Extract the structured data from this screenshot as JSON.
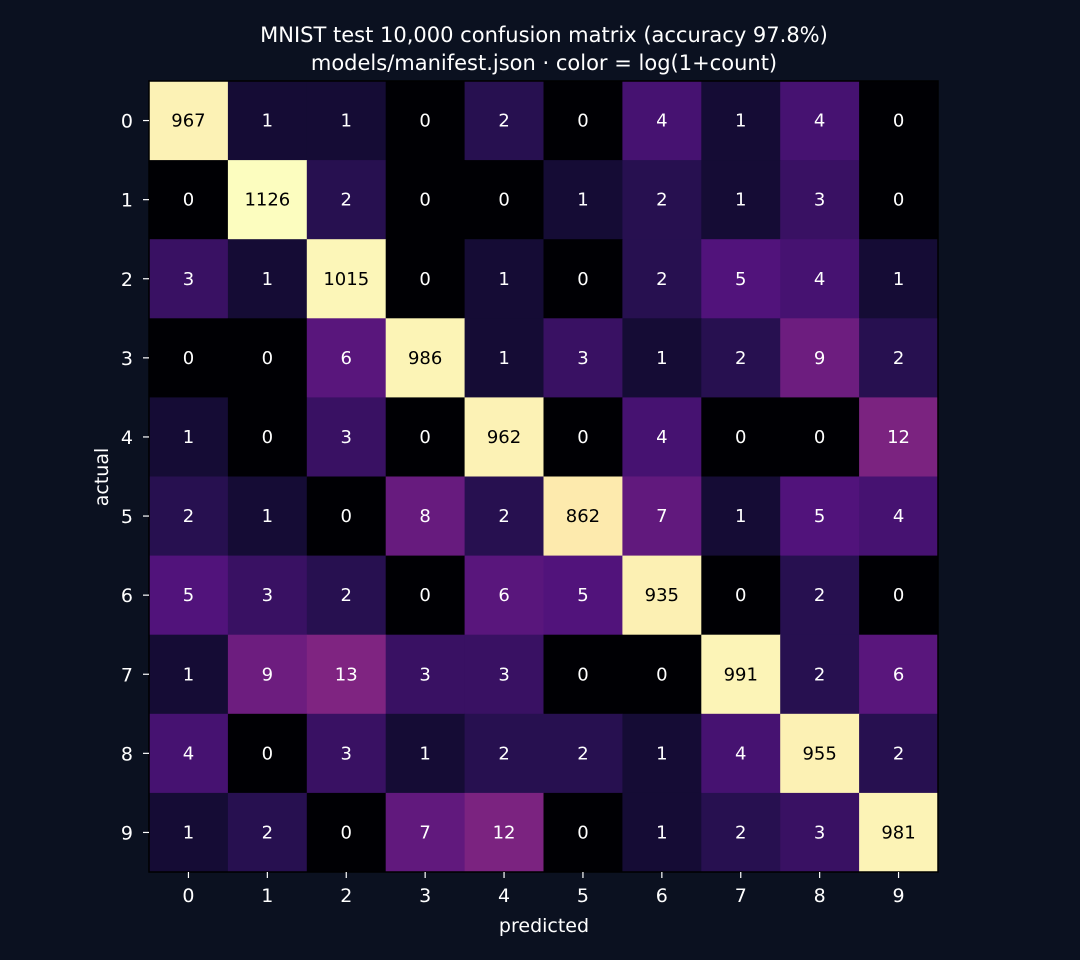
{
  "chart_data": {
    "type": "heatmap",
    "title": "MNIST test 10,000 confusion matrix (accuracy 97.8%)",
    "subtitle": "models/manifest.json · color = log(1+count)",
    "xlabel": "predicted",
    "ylabel": "actual",
    "x_categories": [
      "0",
      "1",
      "2",
      "3",
      "4",
      "5",
      "6",
      "7",
      "8",
      "9"
    ],
    "y_categories": [
      "0",
      "1",
      "2",
      "3",
      "4",
      "5",
      "6",
      "7",
      "8",
      "9"
    ],
    "values": [
      [
        967,
        1,
        1,
        0,
        2,
        0,
        4,
        1,
        4,
        0
      ],
      [
        0,
        1126,
        2,
        0,
        0,
        1,
        2,
        1,
        3,
        0
      ],
      [
        3,
        1,
        1015,
        0,
        1,
        0,
        2,
        5,
        4,
        1
      ],
      [
        0,
        0,
        6,
        986,
        1,
        3,
        1,
        2,
        9,
        2
      ],
      [
        1,
        0,
        3,
        0,
        962,
        0,
        4,
        0,
        0,
        12
      ],
      [
        2,
        1,
        0,
        8,
        2,
        862,
        7,
        1,
        5,
        4
      ],
      [
        5,
        3,
        2,
        0,
        6,
        5,
        935,
        0,
        2,
        0
      ],
      [
        1,
        9,
        13,
        3,
        3,
        0,
        0,
        991,
        2,
        6
      ],
      [
        4,
        0,
        3,
        1,
        2,
        2,
        1,
        4,
        955,
        2
      ],
      [
        1,
        2,
        0,
        7,
        12,
        0,
        1,
        2,
        3,
        981
      ]
    ],
    "color_scale": "log1p",
    "colormap": "magma",
    "colors": {
      "background": "#0b1120",
      "text": "#ffffff",
      "cell_text_dark": "#000000",
      "cell_text_light": "#ffffff",
      "zero": "#000004",
      "max": "#fcfdbf"
    },
    "grid": false,
    "legend": "none"
  }
}
